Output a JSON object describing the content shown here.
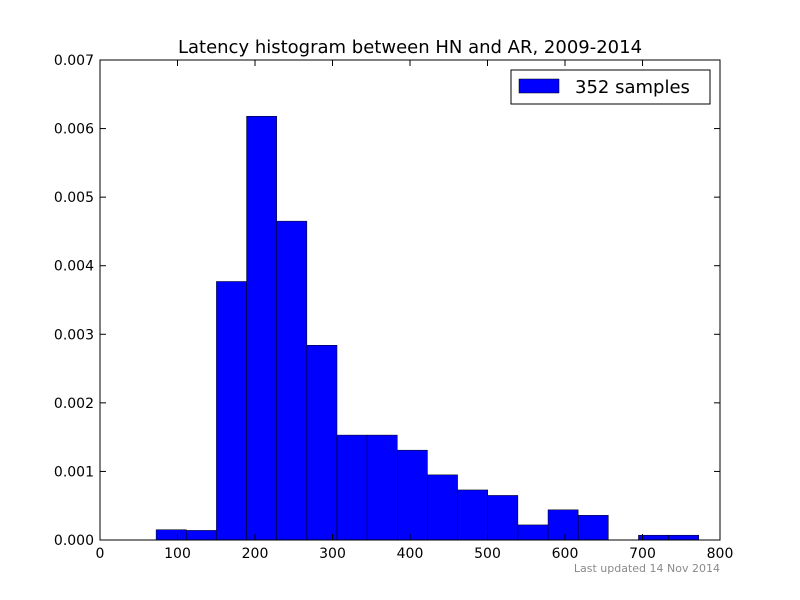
{
  "chart_data": {
    "type": "bar",
    "title": "Latency histogram between HN and AR, 2009-2014",
    "xlabel": "",
    "ylabel": "",
    "xlim": [
      0,
      800
    ],
    "ylim": [
      0,
      0.007
    ],
    "x_ticks": [
      0,
      100,
      200,
      300,
      400,
      500,
      600,
      700,
      800
    ],
    "x_tick_labels": [
      "0",
      "100",
      "200",
      "300",
      "400",
      "500",
      "600",
      "700",
      "800"
    ],
    "y_ticks": [
      0,
      0.001,
      0.002,
      0.003,
      0.004,
      0.005,
      0.006,
      0.007
    ],
    "y_tick_labels": [
      "0.000",
      "0.001",
      "0.002",
      "0.003",
      "0.004",
      "0.005",
      "0.006",
      "0.007"
    ],
    "grid": false,
    "legend_position": "top-right",
    "bar_color": "#0000ff",
    "series": [
      {
        "name": "352 samples",
        "bin_width": 38.9,
        "bins": [
          {
            "x0": 72.4,
            "density": 0.00015
          },
          {
            "x0": 111.3,
            "density": 0.00014
          },
          {
            "x0": 150.2,
            "density": 0.00377
          },
          {
            "x0": 189.1,
            "density": 0.00618
          },
          {
            "x0": 228.0,
            "density": 0.00465
          },
          {
            "x0": 266.9,
            "density": 0.00284
          },
          {
            "x0": 305.8,
            "density": 0.00153
          },
          {
            "x0": 344.7,
            "density": 0.00153
          },
          {
            "x0": 383.6,
            "density": 0.00131
          },
          {
            "x0": 422.5,
            "density": 0.00095
          },
          {
            "x0": 461.4,
            "density": 0.00073
          },
          {
            "x0": 500.3,
            "density": 0.00065
          },
          {
            "x0": 539.2,
            "density": 0.00022
          },
          {
            "x0": 578.1,
            "density": 0.00044
          },
          {
            "x0": 617.0,
            "density": 0.00036
          },
          {
            "x0": 655.9,
            "density": 0
          },
          {
            "x0": 694.8,
            "density": 7e-05
          },
          {
            "x0": 733.7,
            "density": 7e-05
          }
        ]
      }
    ]
  },
  "footnote": "Last updated 14 Nov 2014"
}
